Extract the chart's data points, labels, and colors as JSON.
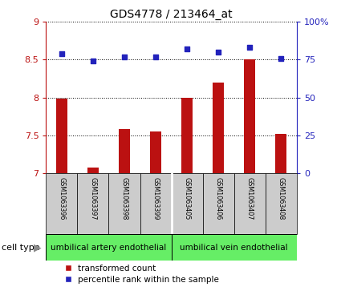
{
  "title": "GDS4778 / 213464_at",
  "samples": [
    "GSM1063396",
    "GSM1063397",
    "GSM1063398",
    "GSM1063399",
    "GSM1063405",
    "GSM1063406",
    "GSM1063407",
    "GSM1063408"
  ],
  "bar_values": [
    7.98,
    7.07,
    7.58,
    7.55,
    8.0,
    8.2,
    8.5,
    7.52
  ],
  "scatter_values": [
    79,
    74,
    77,
    77,
    82,
    80,
    83,
    76
  ],
  "ylim_left": [
    7,
    9
  ],
  "ylim_right": [
    0,
    100
  ],
  "yticks_left": [
    7,
    7.5,
    8,
    8.5,
    9
  ],
  "yticks_right": [
    0,
    25,
    50,
    75,
    100
  ],
  "bar_color": "#bb1111",
  "scatter_color": "#2222bb",
  "group1_label": "umbilical artery endothelial",
  "group2_label": "umbilical vein endothelial",
  "group1_count": 4,
  "group2_count": 4,
  "cell_type_label": "cell type",
  "legend_bar": "transformed count",
  "legend_scatter": "percentile rank within the sample",
  "background_color": "#ffffff",
  "group_bg_color": "#66ee66",
  "sample_box_color": "#cccccc",
  "group_border_color": "#000000",
  "fig_width": 4.25,
  "fig_height": 3.63,
  "dpi": 100
}
